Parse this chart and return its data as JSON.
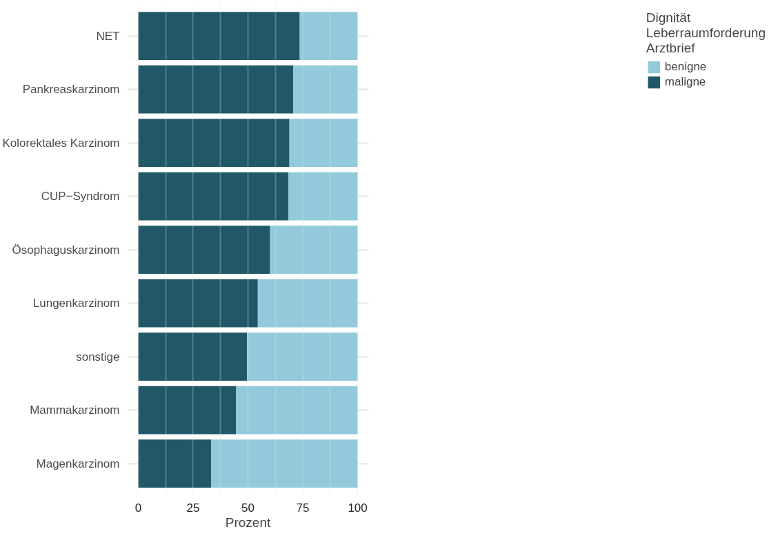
{
  "chart_data": {
    "type": "bar",
    "orientation": "horizontal",
    "stacked": true,
    "categories": [
      "NET",
      "Pankreaskarzinom",
      "Kolorektales Karzinom",
      "CUP−Syndrom",
      "Ösophaguskarzinom",
      "Lungenkarzinom",
      "sonstige",
      "Mammakarzinom",
      "Magenkarzinom"
    ],
    "series": [
      {
        "name": "maligne",
        "color": "#215868",
        "values": [
          73.6,
          70.6,
          68.9,
          68.4,
          60.1,
          54.5,
          49.6,
          44.5,
          33.3
        ]
      },
      {
        "name": "benigne",
        "color": "#92cadb",
        "values": [
          26.4,
          29.4,
          31.1,
          31.6,
          39.9,
          45.5,
          50.4,
          55.5,
          66.7
        ]
      }
    ],
    "xlabel": "Prozent",
    "legend_title": "Dignität\nLeberraumforderung\nArztbrief",
    "xlim": [
      -5,
      105
    ],
    "xticks": [
      0,
      {
        "value": 12.5,
        "label": null
      },
      25,
      {
        "value": 37.5,
        "label": null
      },
      50,
      {
        "value": 62.5,
        "label": null
      },
      75,
      {
        "value": 87.5,
        "label": null
      },
      100
    ],
    "grid": true,
    "legend": "right"
  }
}
